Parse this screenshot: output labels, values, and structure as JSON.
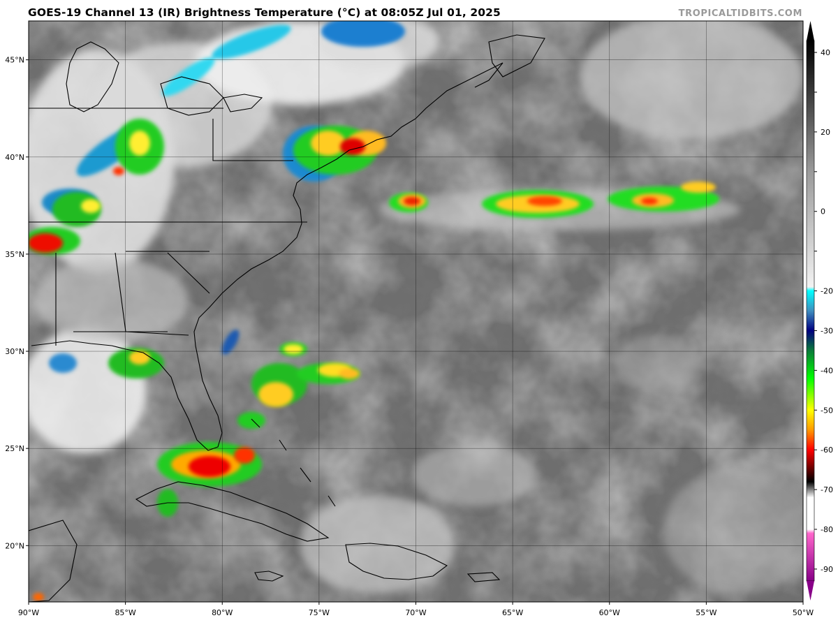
{
  "title": "GOES-19 Channel 13 (IR) Brightness Temperature (°C) at 08:05Z Jul 01, 2025",
  "credit": "TROPICALTIDBITS.COM",
  "axes": {
    "lon": {
      "min": -90,
      "max": -50,
      "ticks": [
        -90,
        -85,
        -80,
        -75,
        -70,
        -65,
        -60,
        -55,
        -50
      ],
      "labels": [
        "90°W",
        "85°W",
        "80°W",
        "75°W",
        "70°W",
        "65°W",
        "60°W",
        "55°W",
        "50°W"
      ]
    },
    "lat": {
      "min": 17.1,
      "max": 47.0,
      "ticks": [
        20,
        25,
        30,
        35,
        40,
        45
      ],
      "labels": [
        "20°N",
        "25°N",
        "30°N",
        "35°N",
        "40°N",
        "45°N"
      ]
    }
  },
  "colorbar": {
    "min": -93,
    "max": 43,
    "ticks": [
      40,
      30,
      20,
      10,
      0,
      -10,
      -20,
      -30,
      -40,
      -50,
      -60,
      -70,
      -80,
      -90
    ],
    "labels": [
      "40",
      "",
      "20",
      "",
      "0",
      "",
      "-20",
      "-30",
      "-40",
      "-50",
      "-60",
      "-70",
      "-80",
      "-90"
    ],
    "stops": [
      {
        "t": 43,
        "color": "#000000"
      },
      {
        "t": 30,
        "color": "#3a3a3a"
      },
      {
        "t": 10,
        "color": "#9a9a9a"
      },
      {
        "t": -19,
        "color": "#f2f2f2"
      },
      {
        "t": -20,
        "color": "#00ffff"
      },
      {
        "t": -25,
        "color": "#3f8fbf"
      },
      {
        "t": -30,
        "color": "#000080"
      },
      {
        "t": -35,
        "color": "#0a7a3a"
      },
      {
        "t": -42,
        "color": "#00ff00"
      },
      {
        "t": -50,
        "color": "#ffff00"
      },
      {
        "t": -55,
        "color": "#ff9900"
      },
      {
        "t": -60,
        "color": "#ff0000"
      },
      {
        "t": -68,
        "color": "#000000"
      },
      {
        "t": -72,
        "color": "#ffffff"
      },
      {
        "t": -80,
        "color": "#ffffff"
      },
      {
        "t": -81,
        "color": "#ff66cc"
      },
      {
        "t": -93,
        "color": "#880088"
      }
    ]
  }
}
